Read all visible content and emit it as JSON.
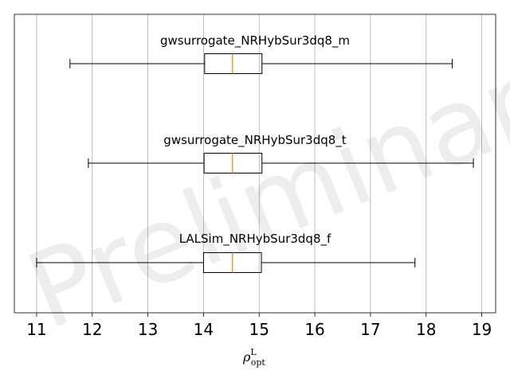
{
  "watermark": "Preliminary",
  "chart_data": {
    "type": "boxplot",
    "orientation": "horizontal",
    "xlabel": {
      "main": "ρ",
      "superscript": "L",
      "subscript": "opt"
    },
    "xlim": [
      10.6,
      19.25
    ],
    "xticks": [
      11,
      12,
      13,
      14,
      15,
      16,
      17,
      18,
      19
    ],
    "grid": {
      "x": true,
      "y": false
    },
    "colors": {
      "box": "#000000",
      "median": "#ff7f0e",
      "grid": "#b0b0b0",
      "frame": "#000000"
    },
    "series": [
      {
        "name": "gwsurrogate_NRHybSur3dq8_m",
        "whisker_low": 11.6,
        "q1": 14.02,
        "median": 14.52,
        "q3": 15.05,
        "whisker_high": 18.47
      },
      {
        "name": "gwsurrogate_NRHybSur3dq8_t",
        "whisker_low": 11.93,
        "q1": 14.01,
        "median": 14.52,
        "q3": 15.05,
        "whisker_high": 18.85
      },
      {
        "name": "LALSim_NRHybSur3dq8_f",
        "whisker_low": 11.0,
        "q1": 14.0,
        "median": 14.52,
        "q3": 15.04,
        "whisker_high": 17.8
      }
    ]
  }
}
